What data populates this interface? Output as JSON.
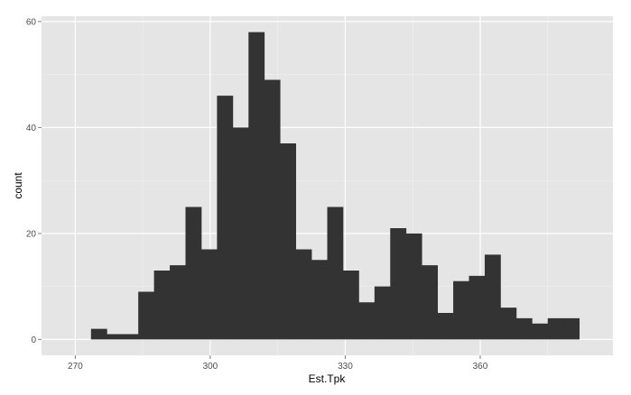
{
  "chart_data": {
    "type": "bar",
    "subtype": "histogram",
    "xlabel": "Est.Tpk",
    "ylabel": "count",
    "xlim": [
      262.5,
      389.5
    ],
    "ylim": [
      -3,
      61
    ],
    "x_ticks": [
      270,
      300,
      330,
      360
    ],
    "y_ticks": [
      0,
      20,
      40,
      60
    ],
    "bin_width": 3.5,
    "bin_start": 273.5,
    "values": [
      2,
      1,
      1,
      9,
      13,
      14,
      25,
      17,
      46,
      40,
      58,
      49,
      37,
      17,
      15,
      25,
      13,
      7,
      10,
      21,
      20,
      14,
      5,
      11,
      12,
      16,
      6,
      4,
      3,
      4,
      4
    ],
    "panel_background": "#e5e5e5",
    "grid_color": "#ffffff",
    "bar_color": "#333333",
    "grid": true,
    "legend": "none"
  }
}
